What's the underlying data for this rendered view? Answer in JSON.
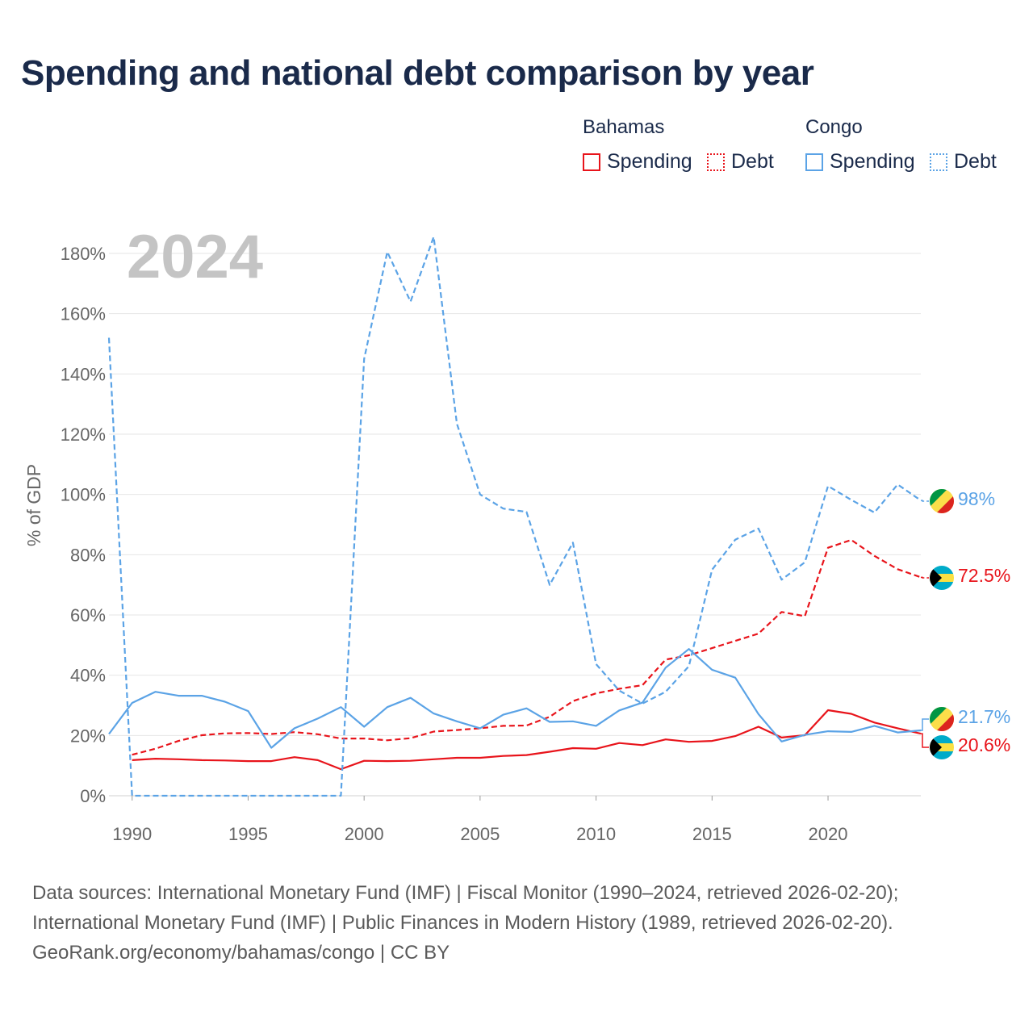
{
  "title": "Spending and national debt comparison by year",
  "legend": {
    "groups": [
      {
        "name": "Bahamas",
        "color": "#e8141b",
        "items": [
          {
            "label": "Spending",
            "style": "solid"
          },
          {
            "label": "Debt",
            "style": "dotted"
          }
        ]
      },
      {
        "name": "Congo",
        "color": "#5ba3e6",
        "items": [
          {
            "label": "Spending",
            "style": "solid"
          },
          {
            "label": "Debt",
            "style": "dotted"
          }
        ]
      }
    ]
  },
  "source": {
    "line1": "Data sources: International Monetary Fund (IMF) | Fiscal Monitor (1990–2024, retrieved 2026-02-20);",
    "line2": "International Monetary Fund (IMF) | Public Finances in Modern History (1989, retrieved 2026-02-20).",
    "line3": "GeoRank.org/economy/bahamas/congo | CC BY"
  },
  "chart_data": {
    "type": "line",
    "title": "Spending and national debt comparison by year",
    "year_label": "2024",
    "ylabel": "% of GDP",
    "xlabel": "",
    "xlim": [
      1989,
      2024
    ],
    "ylim": [
      0,
      180
    ],
    "x_ticks": [
      1990,
      1995,
      2000,
      2005,
      2010,
      2015,
      2020
    ],
    "y_ticks": [
      0,
      20,
      40,
      60,
      80,
      100,
      120,
      140,
      160,
      180
    ],
    "y_tick_labels": [
      "0%",
      "20%",
      "40%",
      "60%",
      "80%",
      "100%",
      "120%",
      "140%",
      "160%",
      "180%"
    ],
    "grid": true,
    "series": [
      {
        "name": "Bahamas Spending",
        "country": "Bahamas",
        "metric": "Spending",
        "color": "#e8141b",
        "dash": "solid",
        "points": [
          [
            1990,
            11.8
          ],
          [
            1991,
            12.3
          ],
          [
            1992,
            12.1
          ],
          [
            1993,
            11.8
          ],
          [
            1994,
            11.7
          ],
          [
            1995,
            11.5
          ],
          [
            1996,
            11.5
          ],
          [
            1997,
            12.8
          ],
          [
            1998,
            11.8
          ],
          [
            1999,
            8.8
          ],
          [
            2000,
            11.6
          ],
          [
            2001,
            11.5
          ],
          [
            2002,
            11.6
          ],
          [
            2003,
            12.1
          ],
          [
            2004,
            12.6
          ],
          [
            2005,
            12.6
          ],
          [
            2006,
            13.2
          ],
          [
            2007,
            13.5
          ],
          [
            2008,
            14.6
          ],
          [
            2009,
            15.8
          ],
          [
            2010,
            15.6
          ],
          [
            2011,
            17.5
          ],
          [
            2012,
            16.8
          ],
          [
            2013,
            18.7
          ],
          [
            2014,
            17.9
          ],
          [
            2015,
            18.2
          ],
          [
            2016,
            19.8
          ],
          [
            2017,
            22.9
          ],
          [
            2018,
            19.3
          ],
          [
            2019,
            20.1
          ],
          [
            2020,
            28.4
          ],
          [
            2021,
            27.2
          ],
          [
            2022,
            24.3
          ],
          [
            2023,
            22.4
          ],
          [
            2024,
            20.6
          ]
        ]
      },
      {
        "name": "Bahamas Debt",
        "country": "Bahamas",
        "metric": "Debt",
        "color": "#e8141b",
        "dash": "dashed",
        "points": [
          [
            1990,
            13.6
          ],
          [
            1991,
            15.6
          ],
          [
            1992,
            18.2
          ],
          [
            1993,
            20.1
          ],
          [
            1994,
            20.7
          ],
          [
            1995,
            20.8
          ],
          [
            1996,
            20.5
          ],
          [
            1997,
            21.1
          ],
          [
            1998,
            20.4
          ],
          [
            1999,
            19.0
          ],
          [
            2000,
            19.0
          ],
          [
            2001,
            18.4
          ],
          [
            2002,
            19.1
          ],
          [
            2003,
            21.3
          ],
          [
            2004,
            21.8
          ],
          [
            2005,
            22.4
          ],
          [
            2006,
            23.2
          ],
          [
            2007,
            23.3
          ],
          [
            2008,
            26.2
          ],
          [
            2009,
            31.4
          ],
          [
            2010,
            34.0
          ],
          [
            2011,
            35.5
          ],
          [
            2012,
            36.7
          ],
          [
            2013,
            45.2
          ],
          [
            2014,
            46.6
          ],
          [
            2015,
            49.0
          ],
          [
            2016,
            51.4
          ],
          [
            2017,
            53.8
          ],
          [
            2018,
            61.0
          ],
          [
            2019,
            59.6
          ],
          [
            2020,
            82.3
          ],
          [
            2021,
            84.9
          ],
          [
            2022,
            79.6
          ],
          [
            2023,
            75.2
          ],
          [
            2024,
            72.5
          ]
        ]
      },
      {
        "name": "Congo Spending",
        "country": "Congo",
        "metric": "Spending",
        "color": "#5ba3e6",
        "dash": "solid",
        "points": [
          [
            1989,
            20.5
          ],
          [
            1990,
            30.8
          ],
          [
            1991,
            34.5
          ],
          [
            1992,
            33.2
          ],
          [
            1993,
            33.2
          ],
          [
            1994,
            31.2
          ],
          [
            1995,
            28.1
          ],
          [
            1996,
            15.9
          ],
          [
            1997,
            22.4
          ],
          [
            1998,
            25.6
          ],
          [
            1999,
            29.4
          ],
          [
            2000,
            22.9
          ],
          [
            2001,
            29.4
          ],
          [
            2002,
            32.5
          ],
          [
            2003,
            27.3
          ],
          [
            2004,
            24.7
          ],
          [
            2005,
            22.4
          ],
          [
            2006,
            26.9
          ],
          [
            2007,
            29.0
          ],
          [
            2008,
            24.5
          ],
          [
            2009,
            24.7
          ],
          [
            2010,
            23.2
          ],
          [
            2011,
            28.3
          ],
          [
            2012,
            30.9
          ],
          [
            2013,
            42.5
          ],
          [
            2014,
            48.7
          ],
          [
            2015,
            41.8
          ],
          [
            2016,
            39.2
          ],
          [
            2017,
            27.1
          ],
          [
            2018,
            18.0
          ],
          [
            2019,
            20.2
          ],
          [
            2020,
            21.4
          ],
          [
            2021,
            21.2
          ],
          [
            2022,
            23.2
          ],
          [
            2023,
            21.0
          ],
          [
            2024,
            21.7
          ]
        ]
      },
      {
        "name": "Congo Debt",
        "country": "Congo",
        "metric": "Debt",
        "color": "#5ba3e6",
        "dash": "dashed",
        "points": [
          [
            1989,
            152.0
          ],
          [
            1990,
            0
          ],
          [
            1991,
            0
          ],
          [
            1992,
            0
          ],
          [
            1993,
            0
          ],
          [
            1994,
            0
          ],
          [
            1995,
            0
          ],
          [
            1996,
            0
          ],
          [
            1997,
            0
          ],
          [
            1998,
            0
          ],
          [
            1999,
            0
          ],
          [
            2000,
            145.0
          ],
          [
            2001,
            180.5
          ],
          [
            2002,
            164.0
          ],
          [
            2003,
            185.5
          ],
          [
            2004,
            123.5
          ],
          [
            2005,
            100.0
          ],
          [
            2006,
            95.3
          ],
          [
            2007,
            94.2
          ],
          [
            2008,
            70.0
          ],
          [
            2009,
            84.0
          ],
          [
            2010,
            43.7
          ],
          [
            2011,
            34.9
          ],
          [
            2012,
            30.6
          ],
          [
            2013,
            34.5
          ],
          [
            2014,
            43.0
          ],
          [
            2015,
            75.0
          ],
          [
            2016,
            85.0
          ],
          [
            2017,
            88.7
          ],
          [
            2018,
            71.7
          ],
          [
            2019,
            77.5
          ],
          [
            2020,
            102.8
          ],
          [
            2021,
            98.2
          ],
          [
            2022,
            94.0
          ],
          [
            2023,
            103.3
          ],
          [
            2024,
            98.0
          ]
        ]
      }
    ],
    "end_labels": [
      {
        "country": "Congo",
        "metric": "Debt",
        "value": 98.0,
        "text": "98%",
        "color": "#5ba3e6"
      },
      {
        "country": "Bahamas",
        "metric": "Debt",
        "value": 72.5,
        "text": "72.5%",
        "color": "#e8141b"
      },
      {
        "country": "Congo",
        "metric": "Spending",
        "value": 21.7,
        "text": "21.7%",
        "color": "#5ba3e6"
      },
      {
        "country": "Bahamas",
        "metric": "Spending",
        "value": 20.6,
        "text": "20.6%",
        "color": "#e8141b"
      }
    ]
  }
}
